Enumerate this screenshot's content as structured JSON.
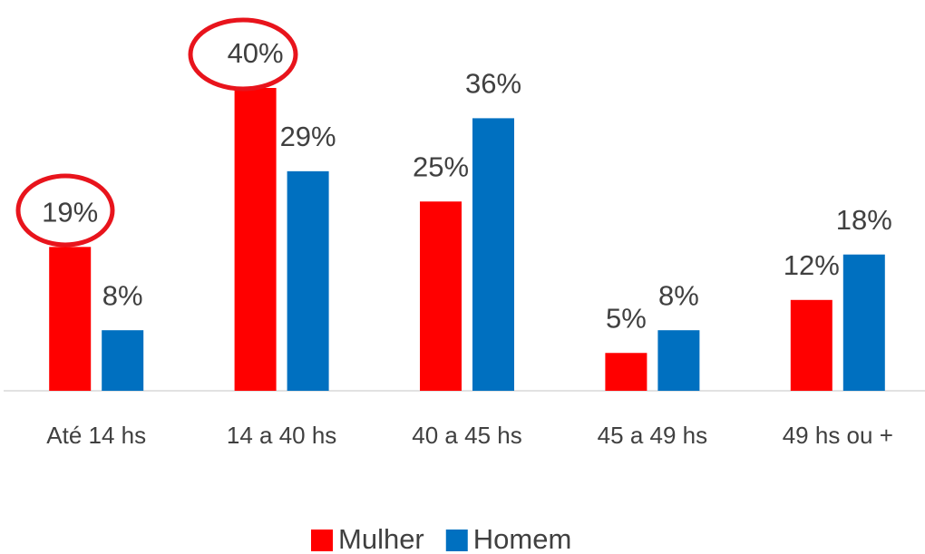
{
  "chart_data": {
    "type": "bar",
    "categories": [
      "Até 14 hs",
      "14 a 40 hs",
      "40 a 45 hs",
      "45 a 49 hs",
      "49 hs ou +"
    ],
    "series": [
      {
        "name": "Mulher",
        "color": "#ff0000",
        "values": [
          19,
          40,
          25,
          5,
          12
        ],
        "value_labels": [
          "19%",
          "40%",
          "25%",
          "5%",
          "12%"
        ]
      },
      {
        "name": "Homem",
        "color": "#0070c0",
        "values": [
          8,
          29,
          36,
          8,
          18
        ],
        "value_labels": [
          "8%",
          "29%",
          "36%",
          "8%",
          "18%"
        ]
      }
    ],
    "legend": "bottom"
  }
}
